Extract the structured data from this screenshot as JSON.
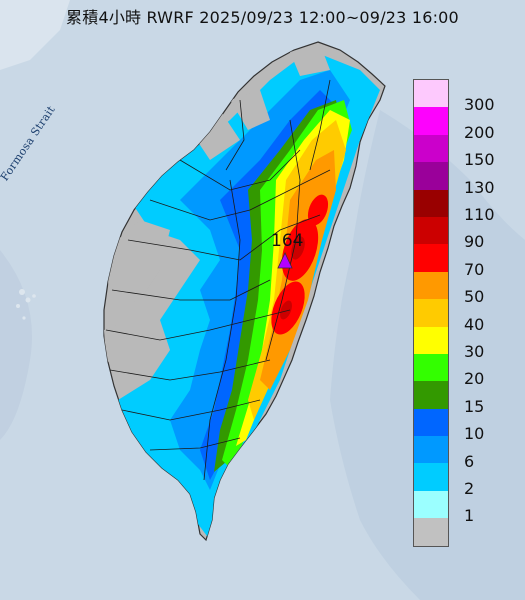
{
  "title": "累積4小時 RWRF 2025/09/23 12:00~09/23 16:00",
  "sea_label": "Formosa Strait",
  "max_marker": {
    "value": "164",
    "symbol": "triangle-icon",
    "color": "#b300ff"
  },
  "colors": {
    "sea": "#c9d8e6",
    "land_nodata": "#b9b9b9",
    "boundary": "#1a1a1a"
  },
  "legend": {
    "items": [
      {
        "label": "300",
        "color": "#fdc9fd"
      },
      {
        "label": "200",
        "color": "#fd02fd"
      },
      {
        "label": "150",
        "color": "#cb00cb"
      },
      {
        "label": "130",
        "color": "#9a009a"
      },
      {
        "label": "110",
        "color": "#990000"
      },
      {
        "label": "90",
        "color": "#cc0000"
      },
      {
        "label": "70",
        "color": "#ff0000"
      },
      {
        "label": "50",
        "color": "#ff9900"
      },
      {
        "label": "40",
        "color": "#ffcb00"
      },
      {
        "label": "30",
        "color": "#ffff00"
      },
      {
        "label": "20",
        "color": "#33ff00"
      },
      {
        "label": "15",
        "color": "#339900"
      },
      {
        "label": "10",
        "color": "#0066ff"
      },
      {
        "label": "6",
        "color": "#0099ff"
      },
      {
        "label": "2",
        "color": "#00ccff"
      },
      {
        "label": "1",
        "color": "#9bffff"
      },
      {
        "label": "",
        "color": "#c1c1c1"
      }
    ]
  }
}
